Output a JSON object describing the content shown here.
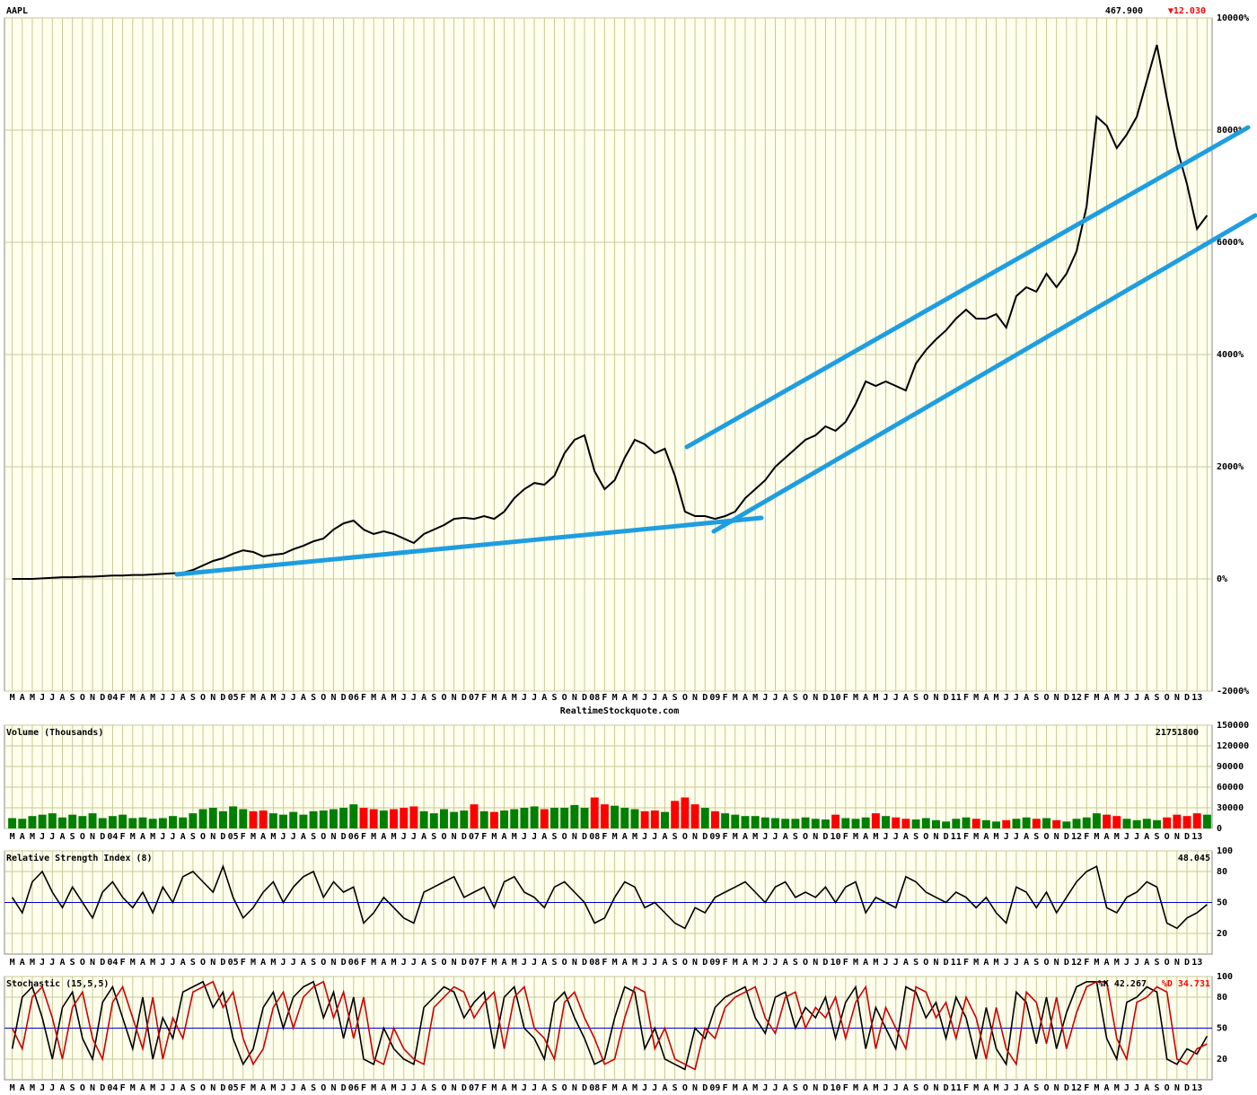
{
  "chart_data": [
    {
      "type": "line",
      "title": "AAPL",
      "last_price": "467.900",
      "change": "▼12.030",
      "change_color": "#ff0000",
      "footer": "RealtimeStockquote.com",
      "categories": [
        "M",
        "A",
        "M",
        "J",
        "J",
        "A",
        "S",
        "O",
        "N",
        "D",
        "04",
        "F",
        "M",
        "A",
        "M",
        "J",
        "J",
        "A",
        "S",
        "O",
        "N",
        "D",
        "05",
        "F",
        "M",
        "A",
        "M",
        "J",
        "J",
        "A",
        "S",
        "O",
        "N",
        "D",
        "06",
        "F",
        "M",
        "A",
        "M",
        "J",
        "J",
        "A",
        "S",
        "O",
        "N",
        "D",
        "07",
        "F",
        "M",
        "A",
        "M",
        "J",
        "J",
        "A",
        "S",
        "O",
        "N",
        "D",
        "08",
        "F",
        "M",
        "A",
        "M",
        "J",
        "J",
        "A",
        "S",
        "O",
        "N",
        "D",
        "09",
        "F",
        "M",
        "A",
        "M",
        "J",
        "J",
        "A",
        "S",
        "O",
        "N",
        "D",
        "10",
        "F",
        "M",
        "A",
        "M",
        "J",
        "J",
        "A",
        "S",
        "O",
        "N",
        "D",
        "11",
        "F",
        "M",
        "A",
        "M",
        "J",
        "J",
        "A",
        "S",
        "O",
        "N",
        "D",
        "12",
        "F",
        "M",
        "A",
        "M",
        "J",
        "J",
        "A",
        "S",
        "O",
        "N",
        "D",
        "13",
        null
      ],
      "series": [
        {
          "name": "AAPL",
          "color": "#000000",
          "values": [
            0,
            0,
            0,
            10,
            20,
            30,
            30,
            40,
            40,
            50,
            60,
            60,
            70,
            70,
            80,
            90,
            100,
            110,
            160,
            240,
            320,
            370,
            450,
            510,
            480,
            400,
            430,
            450,
            530,
            590,
            670,
            720,
            880,
            990,
            1040,
            880,
            800,
            850,
            800,
            720,
            640,
            800,
            880,
            960,
            1070,
            1090,
            1070,
            1120,
            1070,
            1200,
            1440,
            1600,
            1710,
            1680,
            1840,
            2240,
            2480,
            2560,
            1920,
            1600,
            1760,
            2160,
            2480,
            2400,
            2240,
            2320,
            1840,
            1200,
            1120,
            1120,
            1070,
            1120,
            1200,
            1440,
            1600,
            1760,
            2000,
            2160,
            2320,
            2480,
            2560,
            2720,
            2640,
            2800,
            3120,
            3520,
            3440,
            3520,
            3440,
            3360,
            3840,
            4080,
            4270,
            4430,
            4640,
            4800,
            4640,
            4640,
            4720,
            4480,
            5040,
            5200,
            5120,
            5440,
            5200,
            5440,
            5840,
            6640,
            8240,
            8080,
            7680,
            7920,
            8240,
            8880,
            9520,
            8560,
            7680,
            7040,
            6240,
            6480
          ]
        }
      ],
      "ylim": [
        -2000,
        10000
      ],
      "yticks": [
        {
          "value": -2000,
          "label": "-2000%"
        },
        {
          "value": 0,
          "label": "0%"
        },
        {
          "value": 2000,
          "label": "2000%"
        },
        {
          "value": 4000,
          "label": "4000%"
        },
        {
          "value": 6000,
          "label": "6000%"
        },
        {
          "value": 8000,
          "label": "8000%"
        },
        {
          "value": 10000,
          "label": "10000%"
        }
      ],
      "grid": true
    },
    {
      "type": "bar",
      "title": "Volume (Thousands)",
      "last_value": "21751800",
      "up_color": "#008000",
      "down_color": "#ff0000",
      "values": [
        15000,
        14000,
        18000,
        20000,
        22000,
        16000,
        20000,
        18000,
        22000,
        15000,
        18000,
        20000,
        15000,
        16000,
        14000,
        15000,
        18000,
        16000,
        22000,
        28000,
        30000,
        25000,
        32000,
        28000,
        25000,
        26000,
        22000,
        20000,
        24000,
        20000,
        25000,
        26000,
        28000,
        30000,
        35000,
        30000,
        28000,
        26000,
        28000,
        30000,
        32000,
        25000,
        22000,
        28000,
        24000,
        26000,
        35000,
        25000,
        24000,
        26000,
        28000,
        30000,
        32000,
        28000,
        30000,
        30000,
        34000,
        30000,
        45000,
        35000,
        33000,
        30000,
        28000,
        25000,
        26000,
        24000,
        40000,
        45000,
        35000,
        30000,
        25000,
        22000,
        20000,
        18000,
        18000,
        16000,
        15000,
        14000,
        14000,
        16000,
        14000,
        13000,
        20000,
        15000,
        14000,
        16000,
        22000,
        18000,
        16000,
        14000,
        13000,
        15000,
        12000,
        10000,
        14000,
        16000,
        14000,
        12000,
        10000,
        12000,
        14000,
        16000,
        14000,
        15000,
        12000,
        10000,
        14000,
        16000,
        22000,
        20000,
        18000,
        14000,
        12000,
        14000,
        12000,
        16000,
        20000,
        18000,
        22000,
        20000
      ],
      "ylim": [
        0,
        150000
      ],
      "yticks": [
        0,
        30000,
        60000,
        90000,
        120000,
        150000
      ],
      "grid": true
    },
    {
      "type": "line",
      "title": "Relative Strength Index (8)",
      "last_value": "48.045",
      "color": "#000000",
      "midline": 50,
      "midline_color": "#0000cc",
      "values": [
        55,
        40,
        70,
        80,
        60,
        45,
        65,
        50,
        35,
        60,
        70,
        55,
        45,
        60,
        40,
        65,
        50,
        75,
        80,
        70,
        60,
        85,
        55,
        35,
        45,
        60,
        70,
        50,
        65,
        75,
        80,
        55,
        70,
        60,
        65,
        30,
        40,
        55,
        45,
        35,
        30,
        60,
        65,
        70,
        75,
        55,
        60,
        65,
        45,
        70,
        75,
        60,
        55,
        45,
        65,
        70,
        60,
        50,
        30,
        35,
        55,
        70,
        65,
        45,
        50,
        40,
        30,
        25,
        45,
        40,
        55,
        60,
        65,
        70,
        60,
        50,
        65,
        70,
        55,
        60,
        55,
        65,
        50,
        65,
        70,
        40,
        55,
        50,
        45,
        75,
        70,
        60,
        55,
        50,
        60,
        55,
        45,
        55,
        40,
        30,
        65,
        60,
        45,
        60,
        40,
        55,
        70,
        80,
        85,
        45,
        40,
        55,
        60,
        70,
        65,
        30,
        25,
        35,
        40,
        48
      ],
      "ylim": [
        0,
        100
      ],
      "yticks": [
        20,
        50,
        80,
        100
      ],
      "grid": true
    },
    {
      "type": "line",
      "title": "Stochastic (15,5,5)",
      "k_label": "%K 42.267",
      "d_label": "%D 34.731",
      "d_label_color": "#ff0000",
      "midline": 50,
      "midline_color": "#0000cc",
      "series": [
        {
          "name": "%K",
          "color": "#000000",
          "values": [
            30,
            80,
            90,
            60,
            20,
            70,
            85,
            40,
            20,
            75,
            90,
            60,
            30,
            80,
            20,
            60,
            40,
            85,
            90,
            95,
            70,
            85,
            40,
            15,
            30,
            70,
            85,
            50,
            80,
            90,
            95,
            60,
            85,
            40,
            80,
            20,
            15,
            50,
            30,
            20,
            15,
            70,
            80,
            90,
            85,
            60,
            75,
            85,
            30,
            80,
            90,
            50,
            40,
            20,
            75,
            85,
            60,
            40,
            15,
            20,
            60,
            90,
            85,
            30,
            50,
            20,
            15,
            10,
            50,
            40,
            70,
            80,
            85,
            90,
            60,
            45,
            80,
            85,
            50,
            70,
            60,
            80,
            40,
            75,
            90,
            30,
            70,
            50,
            30,
            90,
            85,
            60,
            75,
            40,
            80,
            60,
            20,
            70,
            30,
            15,
            85,
            75,
            35,
            80,
            30,
            65,
            90,
            95,
            95,
            40,
            20,
            75,
            80,
            90,
            85,
            20,
            15,
            30,
            25,
            42.267
          ]
        },
        {
          "name": "%D",
          "color": "#cc0000",
          "values": [
            50,
            30,
            80,
            90,
            60,
            20,
            70,
            85,
            40,
            20,
            75,
            90,
            60,
            30,
            80,
            20,
            60,
            40,
            85,
            90,
            95,
            70,
            85,
            40,
            15,
            30,
            70,
            85,
            50,
            80,
            90,
            95,
            60,
            85,
            40,
            80,
            20,
            15,
            50,
            30,
            20,
            15,
            70,
            80,
            90,
            85,
            60,
            75,
            85,
            30,
            80,
            90,
            50,
            40,
            20,
            75,
            85,
            60,
            40,
            15,
            20,
            60,
            90,
            85,
            30,
            50,
            20,
            15,
            10,
            50,
            40,
            70,
            80,
            85,
            90,
            60,
            45,
            80,
            85,
            50,
            70,
            60,
            80,
            40,
            75,
            90,
            30,
            70,
            50,
            30,
            90,
            85,
            60,
            75,
            40,
            80,
            60,
            20,
            70,
            30,
            15,
            85,
            75,
            35,
            80,
            30,
            65,
            90,
            95,
            95,
            40,
            20,
            75,
            80,
            90,
            85,
            20,
            15,
            30,
            34.731
          ]
        }
      ],
      "ylim": [
        0,
        100
      ],
      "yticks": [
        20,
        50,
        80,
        100
      ],
      "grid": true
    }
  ]
}
